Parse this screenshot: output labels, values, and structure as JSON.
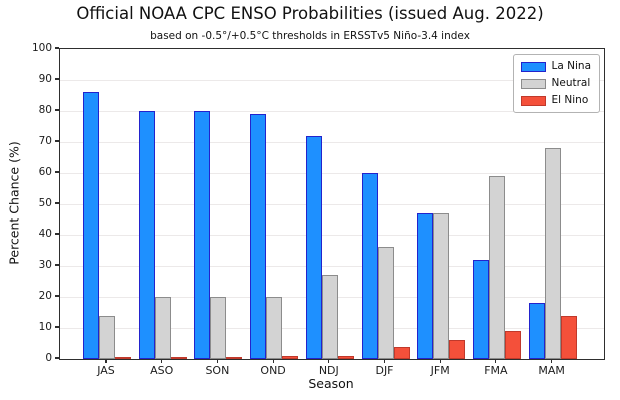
{
  "chart_data": {
    "type": "bar",
    "title": "Official NOAA CPC ENSO Probabilities (issued Aug. 2022)",
    "subtitle": "based on -0.5°/+0.5°C thresholds in ERSSTv5 Niño-3.4 index",
    "categories": [
      "JAS",
      "ASO",
      "SON",
      "OND",
      "NDJ",
      "DJF",
      "JFM",
      "FMA",
      "MAM"
    ],
    "series": [
      {
        "name": "La Nina",
        "fill": "#1E90FF",
        "edge": "#2323CC",
        "values": [
          86,
          80,
          80,
          79,
          72,
          60,
          47,
          32,
          18
        ]
      },
      {
        "name": "Neutral",
        "fill": "#D3D3D3",
        "edge": "#8C8C8C",
        "values": [
          14,
          20,
          20,
          20,
          27,
          36,
          47,
          59,
          68
        ]
      },
      {
        "name": "El Nino",
        "fill": "#F4503A",
        "edge": "#C0392B",
        "values": [
          0,
          0,
          0,
          1,
          1,
          4,
          6,
          9,
          14
        ]
      }
    ],
    "xlabel": "Season",
    "ylabel": "Percent Chance (%)",
    "ylim": [
      0,
      100
    ],
    "yticks": [
      0,
      10,
      20,
      30,
      40,
      50,
      60,
      70,
      80,
      90,
      100
    ],
    "grid": true,
    "legend_position": "upper right"
  }
}
